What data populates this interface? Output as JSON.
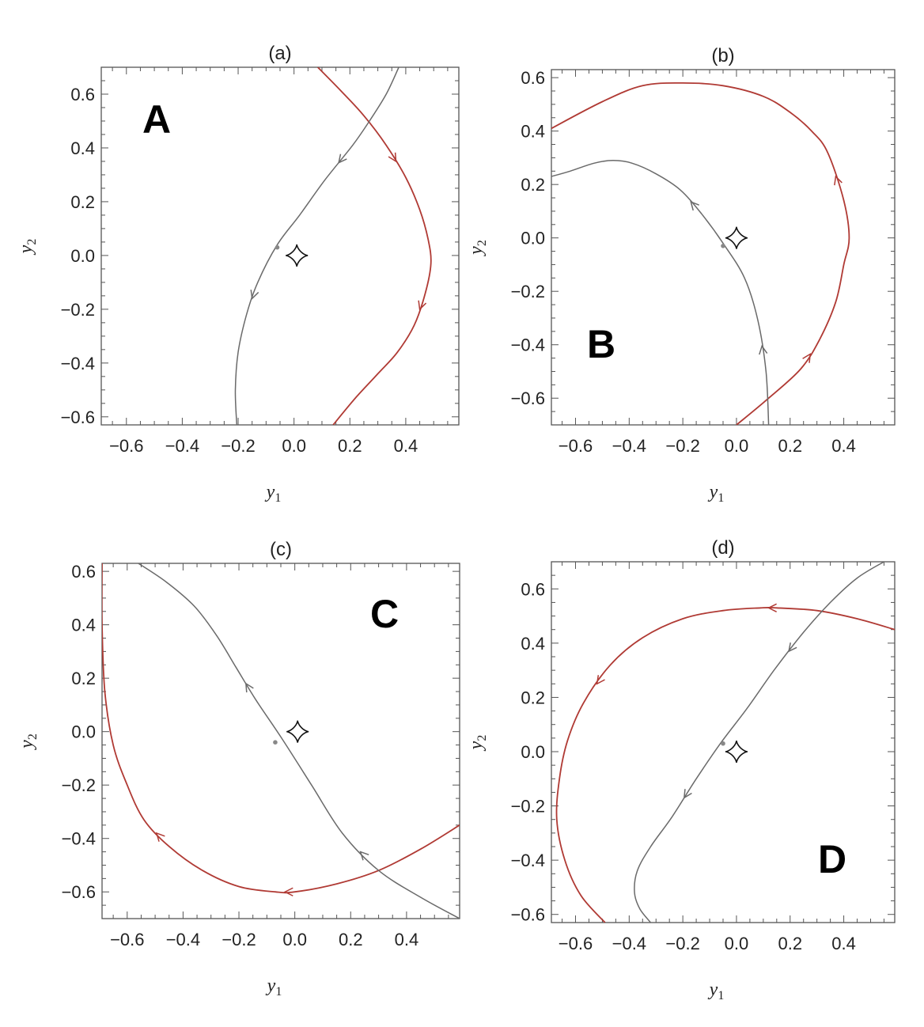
{
  "chart_data": [
    {
      "type": "line",
      "title": "(a)",
      "panel_label": "A",
      "xlabel": "y",
      "xlabel_sub": "1",
      "ylabel": "y",
      "ylabel_sub": "2",
      "xlim": [
        -0.69,
        0.59
      ],
      "ylim": [
        -0.63,
        0.7
      ],
      "xticks": [
        "−0.6",
        "−0.4",
        "−0.2",
        "0.0",
        "0.2",
        "0.4"
      ],
      "xtick_values": [
        -0.6,
        -0.4,
        -0.2,
        0.0,
        0.2,
        0.4
      ],
      "yticks": [
        "0.6",
        "0.4",
        "0.2",
        "0.0",
        "−0.2",
        "−0.4",
        "−0.6"
      ],
      "ytick_values": [
        0.6,
        0.4,
        0.2,
        0.0,
        -0.2,
        -0.4,
        -0.6
      ],
      "series": [
        {
          "color": "#b03a34",
          "x": [
            0.085,
            0.17,
            0.25,
            0.33,
            0.4,
            0.45,
            0.48,
            0.49,
            0.47,
            0.43,
            0.37,
            0.3,
            0.22,
            0.14
          ],
          "y": [
            0.7,
            0.61,
            0.52,
            0.41,
            0.29,
            0.17,
            0.06,
            -0.03,
            -0.14,
            -0.26,
            -0.36,
            -0.44,
            -0.53,
            -0.63
          ],
          "arrows": [
            4,
            9
          ]
        },
        {
          "color": "#6a6a6a",
          "x": [
            0.375,
            0.33,
            0.27,
            0.21,
            0.11,
            0.02,
            -0.06,
            -0.13,
            -0.17,
            -0.2,
            -0.21,
            -0.205
          ],
          "y": [
            0.7,
            0.6,
            0.5,
            0.41,
            0.28,
            0.15,
            0.04,
            -0.1,
            -0.22,
            -0.36,
            -0.5,
            -0.63
          ],
          "arrows": [
            4,
            8
          ]
        }
      ],
      "point": {
        "x": -0.06,
        "y": 0.03
      },
      "caustic": {
        "x": 0.01,
        "y": 0.0
      }
    },
    {
      "type": "line",
      "title": "(b)",
      "panel_label": "B",
      "xlabel": "y",
      "xlabel_sub": "1",
      "ylabel": "y",
      "ylabel_sub": "2",
      "xlim": [
        -0.69,
        0.59
      ],
      "ylim": [
        -0.7,
        0.63
      ],
      "xticks": [
        "−0.6",
        "−0.4",
        "−0.2",
        "0.0",
        "0.2",
        "0.4"
      ],
      "xtick_values": [
        -0.6,
        -0.4,
        -0.2,
        0.0,
        0.2,
        0.4
      ],
      "yticks": [
        "0.6",
        "0.4",
        "0.2",
        "0.0",
        "−0.2",
        "−0.4",
        "−0.6"
      ],
      "ytick_values": [
        0.6,
        0.4,
        0.2,
        0.0,
        -0.2,
        -0.4,
        -0.6
      ],
      "series": [
        {
          "color": "#b03a34",
          "x": [
            0.0,
            0.12,
            0.24,
            0.31,
            0.37,
            0.4,
            0.42,
            0.4,
            0.34,
            0.28,
            0.2,
            0.1,
            -0.05,
            -0.2,
            -0.35,
            -0.5,
            -0.69
          ],
          "y": [
            -0.7,
            -0.6,
            -0.49,
            -0.38,
            -0.24,
            -0.1,
            0.0,
            0.14,
            0.32,
            0.4,
            0.47,
            0.53,
            0.57,
            0.58,
            0.57,
            0.51,
            0.41
          ],
          "arrows": [
            3,
            8
          ]
        },
        {
          "color": "#6a6a6a",
          "x": [
            0.12,
            0.11,
            0.08,
            0.03,
            -0.05,
            -0.13,
            -0.21,
            -0.3,
            -0.39,
            -0.46,
            -0.53,
            -0.62,
            -0.69
          ],
          "y": [
            -0.7,
            -0.5,
            -0.31,
            -0.15,
            -0.02,
            0.09,
            0.18,
            0.24,
            0.28,
            0.29,
            0.28,
            0.25,
            0.23
          ],
          "arrows": [
            2,
            6
          ]
        }
      ],
      "point": {
        "x": -0.05,
        "y": -0.03
      },
      "caustic": {
        "x": 0.0,
        "y": 0.0
      }
    },
    {
      "type": "line",
      "title": "(c)",
      "panel_label": "C",
      "xlabel": "y",
      "xlabel_sub": "1",
      "ylabel": "y",
      "ylabel_sub": "2",
      "xlim": [
        -0.69,
        0.59
      ],
      "ylim": [
        -0.7,
        0.63
      ],
      "xticks": [
        "−0.6",
        "−0.4",
        "−0.2",
        "0.0",
        "0.2",
        "0.4"
      ],
      "xtick_values": [
        -0.6,
        -0.4,
        -0.2,
        0.0,
        0.2,
        0.4
      ],
      "yticks": [
        "0.6",
        "0.4",
        "0.2",
        "0.0",
        "−0.2",
        "−0.4",
        "−0.6"
      ],
      "ytick_values": [
        0.6,
        0.4,
        0.2,
        0.0,
        -0.2,
        -0.4,
        -0.6
      ],
      "series": [
        {
          "color": "#b03a34",
          "x": [
            0.59,
            0.45,
            0.3,
            0.15,
            0.0,
            -0.07,
            -0.2,
            -0.33,
            -0.45,
            -0.54,
            -0.6,
            -0.65,
            -0.68,
            -0.69,
            -0.69
          ],
          "y": [
            -0.35,
            -0.44,
            -0.52,
            -0.57,
            -0.6,
            -0.6,
            -0.58,
            -0.52,
            -0.43,
            -0.33,
            -0.2,
            -0.05,
            0.15,
            0.4,
            0.63
          ],
          "arrows": [
            5,
            9
          ]
        },
        {
          "color": "#6a6a6a",
          "x": [
            0.59,
            0.45,
            0.3,
            0.17,
            0.06,
            -0.05,
            -0.14,
            -0.21,
            -0.28,
            -0.36,
            -0.46,
            -0.56
          ],
          "y": [
            -0.7,
            -0.62,
            -0.52,
            -0.38,
            -0.2,
            -0.02,
            0.12,
            0.24,
            0.36,
            0.47,
            0.56,
            0.63
          ],
          "arrows": [
            3,
            7
          ]
        }
      ],
      "point": {
        "x": -0.07,
        "y": -0.04
      },
      "caustic": {
        "x": 0.01,
        "y": 0.0
      }
    },
    {
      "type": "line",
      "title": "(d)",
      "panel_label": "D",
      "xlabel": "y",
      "xlabel_sub": "1",
      "ylabel": "y",
      "ylabel_sub": "2",
      "xlim": [
        -0.69,
        0.59
      ],
      "ylim": [
        -0.63,
        0.7
      ],
      "xticks": [
        "−0.6",
        "−0.4",
        "−0.2",
        "0.0",
        "0.2",
        "0.4"
      ],
      "xtick_values": [
        -0.6,
        -0.4,
        -0.2,
        0.0,
        0.2,
        0.4
      ],
      "yticks": [
        "0.6",
        "0.4",
        "0.2",
        "0.0",
        "−0.2",
        "−0.4",
        "−0.6"
      ],
      "ytick_values": [
        0.6,
        0.4,
        0.2,
        0.0,
        -0.2,
        -0.4,
        -0.6
      ],
      "series": [
        {
          "color": "#b03a34",
          "x": [
            0.59,
            0.45,
            0.3,
            0.15,
            0.09,
            -0.05,
            -0.2,
            -0.35,
            -0.47,
            -0.57,
            -0.63,
            -0.66,
            -0.67,
            -0.64,
            -0.58,
            -0.49
          ],
          "y": [
            0.45,
            0.49,
            0.52,
            0.53,
            0.53,
            0.52,
            0.49,
            0.42,
            0.32,
            0.18,
            0.04,
            -0.1,
            -0.25,
            -0.4,
            -0.53,
            -0.63
          ],
          "arrows": [
            4,
            9
          ]
        },
        {
          "color": "#6a6a6a",
          "x": [
            0.55,
            0.45,
            0.35,
            0.25,
            0.14,
            0.04,
            -0.06,
            -0.15,
            -0.24,
            -0.32,
            -0.37,
            -0.38,
            -0.36,
            -0.32
          ],
          "y": [
            0.7,
            0.64,
            0.55,
            0.44,
            0.3,
            0.16,
            0.03,
            -0.1,
            -0.24,
            -0.35,
            -0.44,
            -0.52,
            -0.58,
            -0.63
          ],
          "arrows": [
            4,
            8
          ]
        }
      ],
      "point": {
        "x": -0.05,
        "y": 0.03
      },
      "caustic": {
        "x": 0.0,
        "y": 0.0
      }
    }
  ]
}
